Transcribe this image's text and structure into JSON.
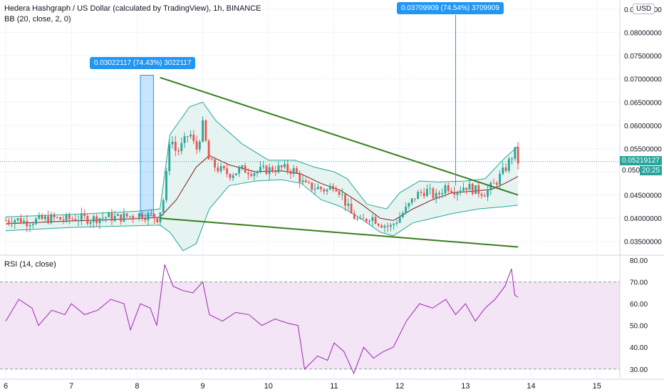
{
  "legend": {
    "title": "Hedera Hashgraph / US Dollar (calculated by TradingView), 1h, BINANCE",
    "bb": "BB (20, close, 2, 0)",
    "rsi": "RSI (14, close)"
  },
  "currency_button": "USD",
  "colors": {
    "up": "#26a69a",
    "down": "#ef5350",
    "bb_band": "#26a69a",
    "bb_basis": "#7b1c1c",
    "bb_fill": "#e6f4f1",
    "trendline": "#3a7d1e",
    "rsi_line": "#9c27b0",
    "rsi_band": "#f3e5f5",
    "measure_blue": "#2196f3",
    "grid": "#f0f3fa",
    "axis_text": "#131722"
  },
  "measurements": [
    {
      "label": "0.03022117 (74.43%) 3022117"
    },
    {
      "label": "0.03709909 (74.54%) 3709909"
    }
  ],
  "price_tags": {
    "last_price": "0.05219127",
    "countdown": "20:25",
    "countdown_price": "0.050"
  },
  "chart_data": [
    {
      "type": "candlestick",
      "title": "Hedera Hashgraph / US Dollar (calculated by TradingView), 1h, BINANCE",
      "y_ticks": [
        "0.03500000",
        "0.04000000",
        "0.04500000",
        "0.05000000",
        "0.05500000",
        "0.06000000",
        "0.06500000",
        "0.07000000",
        "0.07500000",
        "0.08000000",
        "0.08500000"
      ],
      "ylim": [
        0.0325,
        0.087
      ],
      "x_ticks": [
        "6",
        "7",
        "8",
        "9",
        "10",
        "11",
        "12",
        "13",
        "14",
        "15"
      ],
      "x_tick_pos": [
        0.0,
        1.0,
        2.0,
        3.0,
        4.0,
        5.0,
        6.0,
        7.0,
        8.0,
        9.0
      ],
      "xlim": [
        0.0,
        9.35
      ],
      "grid": true,
      "close_path": [
        [
          0.0,
          0.0395
        ],
        [
          0.15,
          0.0398
        ],
        [
          0.3,
          0.0392
        ],
        [
          0.5,
          0.0396
        ],
        [
          0.7,
          0.04
        ],
        [
          0.9,
          0.0397
        ],
        [
          1.1,
          0.0401
        ],
        [
          1.3,
          0.0398
        ],
        [
          1.5,
          0.0403
        ],
        [
          1.7,
          0.0401
        ],
        [
          1.9,
          0.0405
        ],
        [
          2.05,
          0.0408
        ],
        [
          2.2,
          0.0405
        ],
        [
          2.32,
          0.04
        ],
        [
          2.42,
          0.045
        ],
        [
          2.5,
          0.058
        ],
        [
          2.6,
          0.054
        ],
        [
          2.7,
          0.056
        ],
        [
          2.8,
          0.0585
        ],
        [
          2.9,
          0.0545
        ],
        [
          3.0,
          0.06
        ],
        [
          3.1,
          0.052
        ],
        [
          3.25,
          0.0505
        ],
        [
          3.4,
          0.0495
        ],
        [
          3.6,
          0.0505
        ],
        [
          3.8,
          0.05
        ],
        [
          4.0,
          0.0505
        ],
        [
          4.2,
          0.0508
        ],
        [
          4.4,
          0.0502
        ],
        [
          4.55,
          0.047
        ],
        [
          4.75,
          0.0465
        ],
        [
          4.9,
          0.046
        ],
        [
          5.0,
          0.0475
        ],
        [
          5.1,
          0.0455
        ],
        [
          5.25,
          0.041
        ],
        [
          5.4,
          0.039
        ],
        [
          5.55,
          0.0405
        ],
        [
          5.7,
          0.039
        ],
        [
          5.85,
          0.038
        ],
        [
          5.95,
          0.0395
        ],
        [
          6.1,
          0.042
        ],
        [
          6.25,
          0.045
        ],
        [
          6.4,
          0.046
        ],
        [
          6.55,
          0.0445
        ],
        [
          6.7,
          0.047
        ],
        [
          6.85,
          0.046
        ],
        [
          7.0,
          0.047
        ],
        [
          7.15,
          0.046
        ],
        [
          7.3,
          0.0455
        ],
        [
          7.45,
          0.0475
        ],
        [
          7.6,
          0.0505
        ],
        [
          7.75,
          0.0545
        ],
        [
          7.8,
          0.0522
        ]
      ],
      "volatility": 0.0022,
      "series": [
        {
          "name": "BB upper",
          "values": [
            [
              0.0,
              0.0403
            ],
            [
              1.0,
              0.0408
            ],
            [
              2.0,
              0.0415
            ],
            [
              2.35,
              0.042
            ],
            [
              2.5,
              0.058
            ],
            [
              2.8,
              0.064
            ],
            [
              3.0,
              0.065
            ],
            [
              3.2,
              0.061
            ],
            [
              3.6,
              0.056
            ],
            [
              4.0,
              0.0525
            ],
            [
              4.4,
              0.0525
            ],
            [
              4.7,
              0.051
            ],
            [
              5.0,
              0.05
            ],
            [
              5.2,
              0.0485
            ],
            [
              5.5,
              0.043
            ],
            [
              5.8,
              0.042
            ],
            [
              6.0,
              0.0455
            ],
            [
              6.3,
              0.048
            ],
            [
              6.6,
              0.0478
            ],
            [
              7.0,
              0.048
            ],
            [
              7.3,
              0.0485
            ],
            [
              7.6,
              0.053
            ],
            [
              7.8,
              0.0555
            ]
          ]
        },
        {
          "name": "BB basis",
          "values": [
            [
              0.0,
              0.0388
            ],
            [
              1.0,
              0.0394
            ],
            [
              2.0,
              0.0399
            ],
            [
              2.35,
              0.0402
            ],
            [
              2.6,
              0.044
            ],
            [
              2.9,
              0.051
            ],
            [
              3.1,
              0.0535
            ],
            [
              3.4,
              0.0515
            ],
            [
              3.8,
              0.05
            ],
            [
              4.2,
              0.0502
            ],
            [
              4.5,
              0.0495
            ],
            [
              4.8,
              0.0475
            ],
            [
              5.1,
              0.046
            ],
            [
              5.4,
              0.0432
            ],
            [
              5.7,
              0.04
            ],
            [
              5.9,
              0.0395
            ],
            [
              6.2,
              0.042
            ],
            [
              6.5,
              0.044
            ],
            [
              6.8,
              0.0455
            ],
            [
              7.1,
              0.0458
            ],
            [
              7.4,
              0.0462
            ],
            [
              7.6,
              0.0475
            ],
            [
              7.8,
              0.049
            ]
          ]
        },
        {
          "name": "BB lower",
          "values": [
            [
              0.0,
              0.0373
            ],
            [
              1.0,
              0.038
            ],
            [
              2.0,
              0.0384
            ],
            [
              2.35,
              0.0385
            ],
            [
              2.5,
              0.037
            ],
            [
              2.7,
              0.033
            ],
            [
              2.9,
              0.0345
            ],
            [
              3.1,
              0.042
            ],
            [
              3.4,
              0.047
            ],
            [
              3.8,
              0.048
            ],
            [
              4.2,
              0.0483
            ],
            [
              4.5,
              0.0475
            ],
            [
              4.8,
              0.044
            ],
            [
              5.1,
              0.0425
            ],
            [
              5.4,
              0.04
            ],
            [
              5.7,
              0.037
            ],
            [
              5.9,
              0.0362
            ],
            [
              6.2,
              0.039
            ],
            [
              6.5,
              0.04
            ],
            [
              6.8,
              0.041
            ],
            [
              7.2,
              0.042
            ],
            [
              7.6,
              0.0425
            ],
            [
              7.8,
              0.0428
            ]
          ]
        },
        {
          "name": "Trendline upper",
          "values": [
            [
              2.35,
              0.0703
            ],
            [
              7.8,
              0.045
            ]
          ]
        },
        {
          "name": "Trendline lower",
          "values": [
            [
              2.35,
              0.04
            ],
            [
              7.8,
              0.0338
            ]
          ]
        }
      ],
      "measure_bars": [
        {
          "x0": 2.05,
          "x1": 2.25,
          "y0": 0.0405,
          "y1": 0.0708
        },
        {
          "x": 6.85,
          "y0": 0.047,
          "y1": 0.0838
        }
      ]
    },
    {
      "type": "line",
      "title": "RSI (14, close)",
      "y_ticks": [
        "30.00",
        "40.00",
        "50.00",
        "60.00",
        "70.00",
        "80.00"
      ],
      "ylim": [
        26,
        81
      ],
      "band": [
        30,
        70
      ],
      "series": [
        {
          "name": "RSI",
          "values": [
            [
              0.0,
              52
            ],
            [
              0.2,
              62
            ],
            [
              0.4,
              58
            ],
            [
              0.5,
              50
            ],
            [
              0.7,
              57
            ],
            [
              0.9,
              55
            ],
            [
              1.0,
              60
            ],
            [
              1.2,
              55
            ],
            [
              1.4,
              57
            ],
            [
              1.6,
              62
            ],
            [
              1.8,
              60
            ],
            [
              1.9,
              48
            ],
            [
              2.05,
              60
            ],
            [
              2.2,
              58
            ],
            [
              2.3,
              50
            ],
            [
              2.42,
              78
            ],
            [
              2.55,
              68
            ],
            [
              2.7,
              66
            ],
            [
              2.85,
              65
            ],
            [
              3.0,
              70
            ],
            [
              3.1,
              55
            ],
            [
              3.3,
              52
            ],
            [
              3.5,
              56
            ],
            [
              3.7,
              55
            ],
            [
              3.9,
              50
            ],
            [
              4.1,
              53
            ],
            [
              4.3,
              51
            ],
            [
              4.45,
              50
            ],
            [
              4.55,
              30
            ],
            [
              4.75,
              36
            ],
            [
              4.9,
              34
            ],
            [
              5.0,
              42
            ],
            [
              5.15,
              38
            ],
            [
              5.3,
              28
            ],
            [
              5.45,
              40
            ],
            [
              5.6,
              35
            ],
            [
              5.75,
              38
            ],
            [
              5.9,
              40
            ],
            [
              6.1,
              52
            ],
            [
              6.3,
              60
            ],
            [
              6.5,
              58
            ],
            [
              6.7,
              62
            ],
            [
              6.85,
              55
            ],
            [
              7.0,
              60
            ],
            [
              7.15,
              52
            ],
            [
              7.3,
              58
            ],
            [
              7.45,
              62
            ],
            [
              7.6,
              68
            ],
            [
              7.7,
              76
            ],
            [
              7.75,
              64
            ],
            [
              7.8,
              63
            ]
          ]
        }
      ]
    }
  ]
}
